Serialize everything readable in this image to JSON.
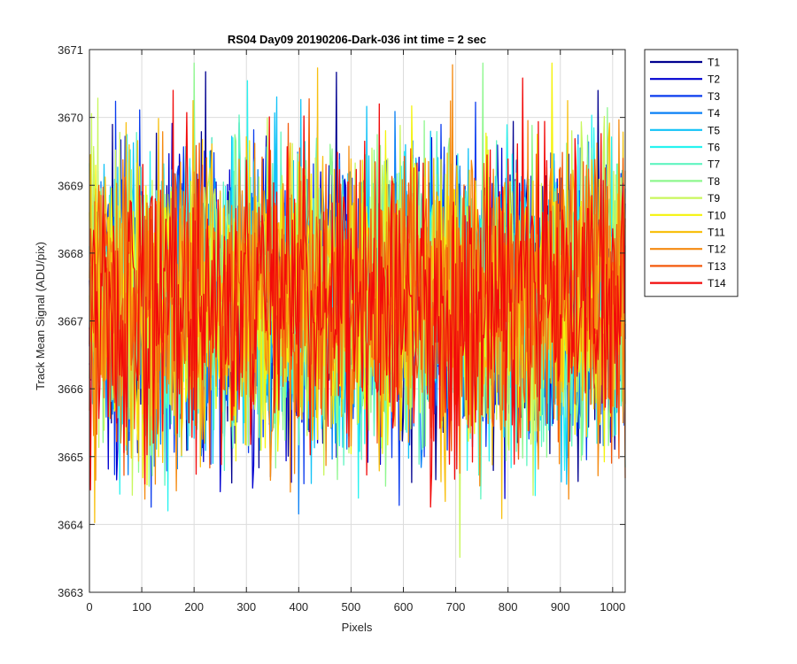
{
  "chart_data": {
    "type": "line",
    "title": "RS04 Day09 20190206-Dark-036 int time = 2 sec",
    "xlabel": "Pixels",
    "ylabel": "Track Mean Signal (ADU/pix)",
    "xlim": [
      0,
      1024
    ],
    "ylim": [
      3663,
      3671
    ],
    "xticks": [
      0,
      100,
      200,
      300,
      400,
      500,
      600,
      700,
      800,
      900,
      1000
    ],
    "yticks": [
      3663,
      3664,
      3665,
      3666,
      3667,
      3668,
      3669,
      3670,
      3671
    ],
    "grid": true,
    "legend_position": "outside-top-right",
    "series": [
      {
        "name": "T1",
        "color": "#00008f",
        "mean": 3667.3,
        "spread": 2.0
      },
      {
        "name": "T2",
        "color": "#0000d0",
        "mean": 3667.3,
        "spread": 2.0
      },
      {
        "name": "T3",
        "color": "#0a3cef",
        "mean": 3667.3,
        "spread": 2.0
      },
      {
        "name": "T4",
        "color": "#0a80f5",
        "mean": 3667.3,
        "spread": 2.0
      },
      {
        "name": "T5",
        "color": "#11c2f7",
        "mean": 3667.3,
        "spread": 2.0
      },
      {
        "name": "T6",
        "color": "#27f3f0",
        "mean": 3667.3,
        "spread": 2.0
      },
      {
        "name": "T7",
        "color": "#5ff5c0",
        "mean": 3667.3,
        "spread": 2.0
      },
      {
        "name": "T8",
        "color": "#8ef78e",
        "mean": 3667.3,
        "spread": 2.0
      },
      {
        "name": "T9",
        "color": "#c8f75c",
        "mean": 3667.3,
        "spread": 2.0
      },
      {
        "name": "T10",
        "color": "#f4f30c",
        "mean": 3667.3,
        "spread": 2.0
      },
      {
        "name": "T11",
        "color": "#f8c010",
        "mean": 3667.3,
        "spread": 2.0
      },
      {
        "name": "T12",
        "color": "#f58a10",
        "mean": 3667.3,
        "spread": 2.0
      },
      {
        "name": "T13",
        "color": "#f45a0c",
        "mean": 3667.3,
        "spread": 2.0
      },
      {
        "name": "T14",
        "color": "#f20a0a",
        "mean": 3667.3,
        "spread": 2.0
      }
    ]
  }
}
